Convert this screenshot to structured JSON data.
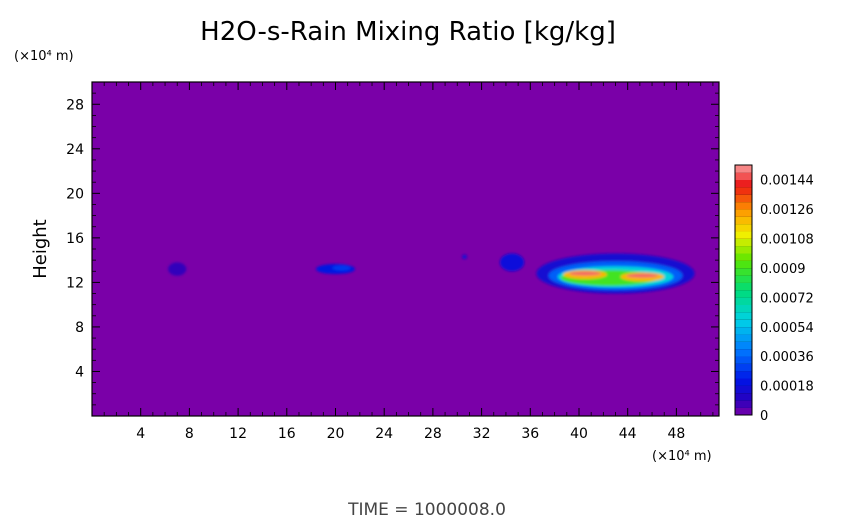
{
  "chart_data": {
    "type": "heatmap",
    "title": "H2O-s-Rain Mixing Ratio [kg/kg]",
    "xlabel": "",
    "ylabel": "Height",
    "x_unit": "(×10⁴ m)",
    "y_unit": "(×10⁴ m)",
    "xlim": [
      0,
      51.5
    ],
    "ylim": [
      0,
      30
    ],
    "x_ticks": [
      "4",
      "8",
      "12",
      "16",
      "20",
      "24",
      "28",
      "32",
      "36",
      "40",
      "44",
      "48"
    ],
    "y_ticks": [
      "4",
      "8",
      "12",
      "16",
      "20",
      "24",
      "28"
    ],
    "x_tick_values": [
      4,
      8,
      12,
      16,
      20,
      24,
      28,
      32,
      36,
      40,
      44,
      48
    ],
    "y_tick_values": [
      4,
      8,
      12,
      16,
      20,
      24,
      28
    ],
    "colorbar": {
      "min": 0,
      "max": 0.00153,
      "ticks": [
        "0",
        "0.00018",
        "0.00036",
        "0.00054",
        "0.00072",
        "0.0009",
        "0.00108",
        "0.00126",
        "0.00144"
      ],
      "tick_values": [
        0,
        0.00018,
        0.00036,
        0.00054,
        0.00072,
        0.0009,
        0.00108,
        0.00126,
        0.00144
      ]
    },
    "background_color": "#7a00a8",
    "features": [
      {
        "x": 7.0,
        "y": 13.2,
        "w": 1.5,
        "h": 1.2,
        "value": 8e-05
      },
      {
        "x": 20.0,
        "y": 13.2,
        "w": 3.2,
        "h": 0.9,
        "value": 0.0002
      },
      {
        "x": 20.5,
        "y": 13.3,
        "w": 1.5,
        "h": 0.5,
        "value": 0.00028
      },
      {
        "x": 30.6,
        "y": 14.3,
        "w": 0.4,
        "h": 0.4,
        "value": 0.00015
      },
      {
        "x": 34.5,
        "y": 13.8,
        "w": 2.0,
        "h": 1.6,
        "value": 0.00018
      },
      {
        "x": 43.0,
        "y": 12.8,
        "w": 13.0,
        "h": 3.6,
        "value": 0.00015
      },
      {
        "x": 43.0,
        "y": 12.6,
        "w": 11.0,
        "h": 2.6,
        "value": 0.00035
      },
      {
        "x": 43.0,
        "y": 12.5,
        "w": 9.5,
        "h": 1.9,
        "value": 0.0006
      },
      {
        "x": 42.5,
        "y": 12.4,
        "w": 8.0,
        "h": 1.4,
        "value": 0.0009
      },
      {
        "x": 40.5,
        "y": 12.7,
        "w": 3.6,
        "h": 0.8,
        "value": 0.0012
      },
      {
        "x": 45.2,
        "y": 12.5,
        "w": 3.6,
        "h": 0.8,
        "value": 0.0012
      },
      {
        "x": 40.5,
        "y": 12.8,
        "w": 2.6,
        "h": 0.35,
        "value": 0.00148
      },
      {
        "x": 45.2,
        "y": 12.6,
        "w": 2.6,
        "h": 0.35,
        "value": 0.00148
      }
    ]
  },
  "footer": {
    "time_label": "TIME = 1000008.0"
  }
}
